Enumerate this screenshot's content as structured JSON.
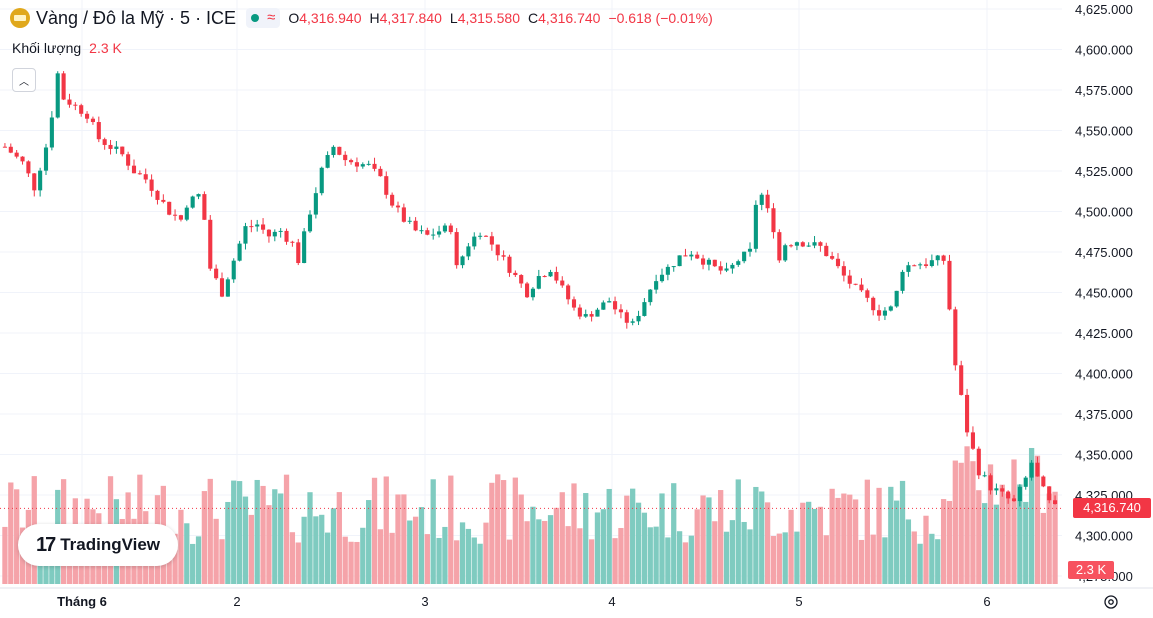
{
  "header": {
    "symbol_title": "Vàng / Đô la Mỹ · 5 · ICE",
    "ohlc": {
      "o_label": "O",
      "o_value": "4,316.940",
      "h_label": "H",
      "h_value": "4,317.840",
      "l_label": "L",
      "l_value": "4,315.580",
      "c_label": "C",
      "c_value": "4,316.740"
    },
    "change": "−0.618 (−0.01%)",
    "status_icon": "live-dot-icon",
    "wave_icon": "wave-icon"
  },
  "volume_legend": {
    "label": "Khối lượng",
    "value": "2.3 K"
  },
  "price_badge": "4,316.740",
  "volume_badge": "2.3 K",
  "branding": {
    "logo_text": "TradingView",
    "logo_mark": "17"
  },
  "colors": {
    "up": "#089981",
    "down": "#f23645",
    "vol_up": "#7fcbc0",
    "vol_down": "#f5a3a9",
    "grid": "#f0f3fa"
  },
  "chart_data": {
    "type": "candlestick",
    "y_ticks": [
      "4,625.000",
      "4,600.000",
      "4,575.000",
      "4,550.000",
      "4,525.000",
      "4,500.000",
      "4,475.000",
      "4,450.000",
      "4,425.000",
      "4,400.000",
      "4,375.000",
      "4,350.000",
      "4,325.000",
      "4,300.000",
      "4,275.000"
    ],
    "x_ticks": [
      "Tháng 6",
      "2",
      "3",
      "4",
      "5",
      "6"
    ],
    "ylim": [
      4275,
      4625
    ],
    "last_price": 4316.74,
    "series_path": [
      [
        0,
        4540
      ],
      [
        3,
        4530
      ],
      [
        5,
        4515
      ],
      [
        7,
        4540
      ],
      [
        8,
        4560
      ],
      [
        9,
        4585
      ],
      [
        10,
        4570
      ],
      [
        12,
        4565
      ],
      [
        14,
        4560
      ],
      [
        16,
        4545
      ],
      [
        18,
        4540
      ],
      [
        20,
        4535
      ],
      [
        22,
        4525
      ],
      [
        24,
        4520
      ],
      [
        26,
        4510
      ],
      [
        28,
        4500
      ],
      [
        30,
        4495
      ],
      [
        31,
        4505
      ],
      [
        33,
        4510
      ],
      [
        34,
        4495
      ],
      [
        35,
        4465
      ],
      [
        37,
        4450
      ],
      [
        39,
        4470
      ],
      [
        41,
        4490
      ],
      [
        43,
        4492
      ],
      [
        45,
        4485
      ],
      [
        47,
        4488
      ],
      [
        49,
        4480
      ],
      [
        50,
        4470
      ],
      [
        52,
        4500
      ],
      [
        54,
        4525
      ],
      [
        56,
        4540
      ],
      [
        58,
        4532
      ],
      [
        60,
        4530
      ],
      [
        62,
        4528
      ],
      [
        64,
        4520
      ],
      [
        66,
        4505
      ],
      [
        68,
        4495
      ],
      [
        70,
        4488
      ],
      [
        72,
        4485
      ],
      [
        74,
        4488
      ],
      [
        76,
        4490
      ],
      [
        77,
        4465
      ],
      [
        79,
        4480
      ],
      [
        81,
        4488
      ],
      [
        83,
        4480
      ],
      [
        85,
        4470
      ],
      [
        87,
        4460
      ],
      [
        89,
        4450
      ],
      [
        91,
        4460
      ],
      [
        93,
        4465
      ],
      [
        95,
        4452
      ],
      [
        97,
        4440
      ],
      [
        99,
        4435
      ],
      [
        101,
        4440
      ],
      [
        103,
        4445
      ],
      [
        105,
        4435
      ],
      [
        107,
        4430
      ],
      [
        109,
        4445
      ],
      [
        111,
        4460
      ],
      [
        113,
        4465
      ],
      [
        115,
        4472
      ],
      [
        117,
        4475
      ],
      [
        119,
        4470
      ],
      [
        121,
        4465
      ],
      [
        123,
        4462
      ],
      [
        125,
        4470
      ],
      [
        127,
        4475
      ],
      [
        128,
        4505
      ],
      [
        129,
        4510
      ],
      [
        130,
        4500
      ],
      [
        131,
        4490
      ],
      [
        132,
        4470
      ],
      [
        133,
        4480
      ],
      [
        135,
        4482
      ],
      [
        137,
        4480
      ],
      [
        139,
        4478
      ],
      [
        141,
        4470
      ],
      [
        143,
        4460
      ],
      [
        145,
        4452
      ],
      [
        147,
        4445
      ],
      [
        149,
        4438
      ],
      [
        151,
        4440
      ],
      [
        152,
        4450
      ],
      [
        153,
        4465
      ],
      [
        155,
        4468
      ],
      [
        157,
        4468
      ],
      [
        159,
        4470
      ],
      [
        160,
        4470
      ],
      [
        161,
        4440
      ],
      [
        162,
        4405
      ],
      [
        163,
        4385
      ],
      [
        164,
        4365
      ],
      [
        166,
        4340
      ],
      [
        168,
        4330
      ],
      [
        170,
        4325
      ],
      [
        172,
        4320
      ],
      [
        174,
        4335
      ],
      [
        175,
        4345
      ],
      [
        176,
        4335
      ],
      [
        178,
        4320
      ],
      [
        179,
        4316.74
      ]
    ],
    "series_count": 180
  }
}
